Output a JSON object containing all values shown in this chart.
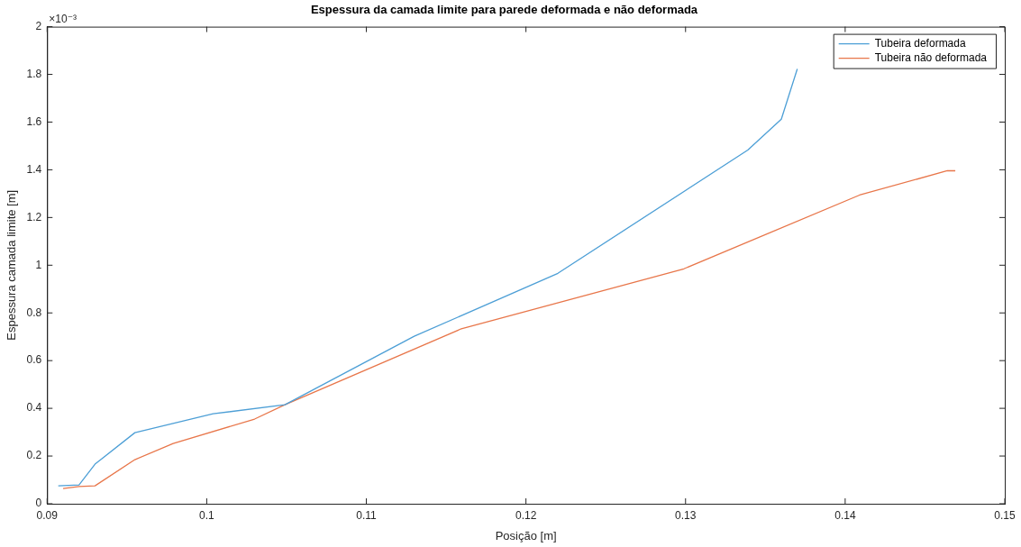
{
  "chart_data": {
    "type": "line",
    "title": "Espessura da camada limite para parede deformada e não deformada",
    "xlabel": "Posição [m]",
    "ylabel": "Espessura camada limite [m]",
    "annotations": [
      "×10⁻³"
    ],
    "xlim": [
      0.09,
      0.15
    ],
    "xticks": [
      0.09,
      0.1,
      0.11,
      0.12,
      0.13,
      0.14,
      0.15
    ],
    "ylim": [
      0,
      2
    ],
    "yticks": [
      0,
      0.2,
      0.4,
      0.6,
      0.8,
      1,
      1.2,
      1.4,
      1.6,
      1.8,
      2
    ],
    "grid": false,
    "legend": "top right",
    "series": [
      {
        "name": "Tubeira deformada",
        "color": "#4d9fd6",
        "x": [
          0.0907,
          0.092,
          0.093,
          0.0955,
          0.1004,
          0.1049,
          0.113,
          0.122,
          0.1339,
          0.136,
          0.137
        ],
        "values": [
          0.075,
          0.079,
          0.166,
          0.298,
          0.377,
          0.415,
          0.702,
          0.966,
          1.483,
          1.612,
          1.823
        ]
      },
      {
        "name": "Tubeira não deformada",
        "color": "#e8764a",
        "x": [
          0.091,
          0.092,
          0.093,
          0.0955,
          0.0979,
          0.103,
          0.1049,
          0.1159,
          0.1299,
          0.1409,
          0.1464,
          0.1469
        ],
        "values": [
          0.064,
          0.072,
          0.075,
          0.185,
          0.253,
          0.355,
          0.415,
          0.732,
          0.985,
          1.294,
          1.396,
          1.396
        ]
      }
    ]
  }
}
